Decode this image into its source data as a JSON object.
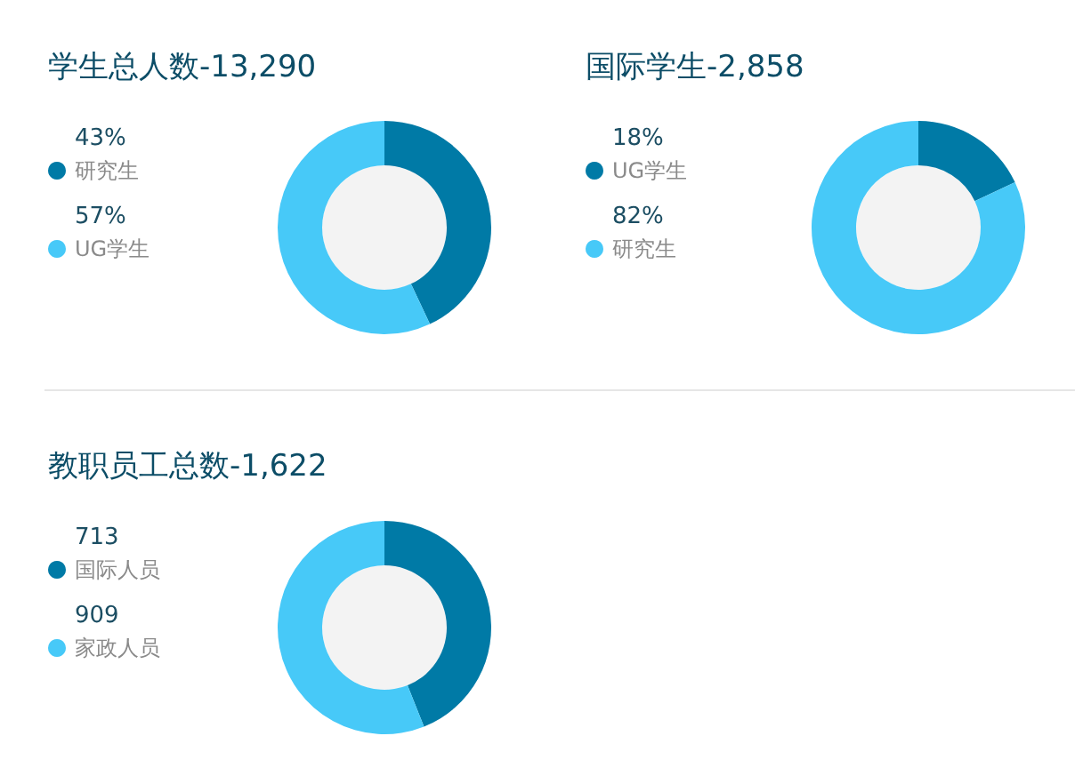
{
  "chart_data": [
    {
      "type": "donut",
      "title": "学生总人数-13,290",
      "categories": [
        "研究生",
        "UG学生"
      ],
      "values": [
        43,
        57
      ],
      "value_labels": [
        "43%",
        "57%"
      ],
      "colors": [
        "#007aa6",
        "#47c9f8"
      ],
      "legend": "left"
    },
    {
      "type": "donut",
      "title": "国际学生-2,858",
      "categories": [
        "UG学生",
        "研究生"
      ],
      "values": [
        18,
        82
      ],
      "value_labels": [
        "18%",
        "82%"
      ],
      "colors": [
        "#007aa6",
        "#47c9f8"
      ],
      "legend": "left"
    },
    {
      "type": "donut",
      "title": "教职员工总数-1,622",
      "categories": [
        "国际人员",
        "家政人员"
      ],
      "values": [
        713,
        909
      ],
      "data_labels": true,
      "colors": [
        "#007aa6",
        "#47c9f8"
      ],
      "legend": "left"
    }
  ]
}
